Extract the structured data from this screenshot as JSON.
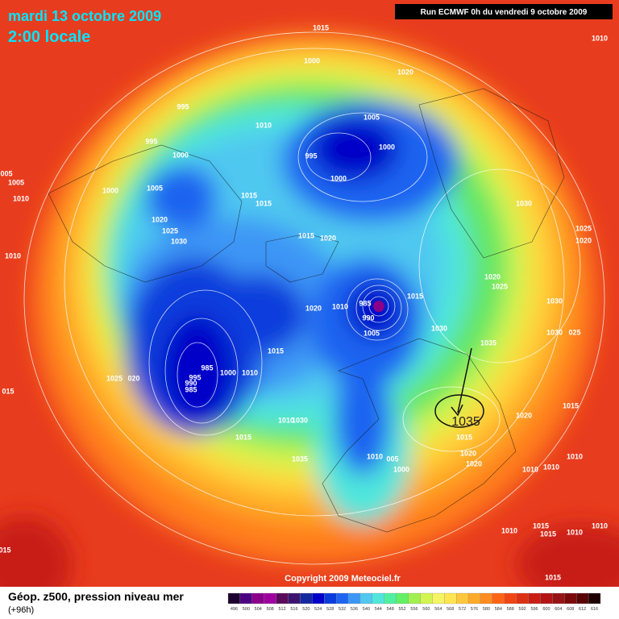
{
  "header": {
    "date": "mardi 13 octobre 2009",
    "time": "2:00 locale",
    "run": "Run ECMWF 0h du vendredi 9 octobre 2009"
  },
  "map": {
    "pressure_labels": [
      "1015",
      "1010",
      "1000",
      "1020",
      "995",
      "1010",
      "1005",
      "995",
      "1000",
      "1000",
      "995",
      "005",
      "1005",
      "1000",
      "1005",
      "1000",
      "1010",
      "1015",
      "1015",
      "1030",
      "1020",
      "1025",
      "1030",
      "1015",
      "1020",
      "1025",
      "1020",
      "1010",
      "1020",
      "1025",
      "1015",
      "1030",
      "1020",
      "1010",
      "985",
      "990",
      "1005",
      "1030",
      "1030",
      "025",
      "1035",
      "1015",
      "985",
      "995",
      "1000",
      "1010",
      "990",
      "1025",
      "020",
      "985",
      "015",
      "1020",
      "1015",
      "1010",
      "1030",
      "1015",
      "1015",
      "1035",
      "1020",
      "1020",
      "1010",
      "005",
      "1000",
      "1010",
      "1010",
      "1010",
      "1010",
      "1015",
      "1015",
      "1010",
      "1010",
      "015",
      "1015"
    ],
    "annotation": "1035"
  },
  "footer": {
    "copyright": "Copyright 2009 Meteociel.fr"
  },
  "legend": {
    "title": "Géop. z500, pression niveau mer",
    "lead": "(+96h)",
    "scale": [
      {
        "label": 496,
        "color": "#1e0030"
      },
      {
        "label": 500,
        "color": "#4b0082"
      },
      {
        "label": 504,
        "color": "#8b008b"
      },
      {
        "label": 508,
        "color": "#a000a0"
      },
      {
        "label": 512,
        "color": "#5a0a5a"
      },
      {
        "label": 516,
        "color": "#3c1470"
      },
      {
        "label": 520,
        "color": "#1428a0"
      },
      {
        "label": 524,
        "color": "#0000c8"
      },
      {
        "label": 528,
        "color": "#0a3cdc"
      },
      {
        "label": 532,
        "color": "#1e64f0"
      },
      {
        "label": 536,
        "color": "#3c96f5"
      },
      {
        "label": 540,
        "color": "#50c8f0"
      },
      {
        "label": 544,
        "color": "#50e6dc"
      },
      {
        "label": 548,
        "color": "#50f0a0"
      },
      {
        "label": 552,
        "color": "#64f064"
      },
      {
        "label": 556,
        "color": "#a0f050"
      },
      {
        "label": 560,
        "color": "#d2f550"
      },
      {
        "label": 564,
        "color": "#f5f564"
      },
      {
        "label": 568,
        "color": "#ffe650"
      },
      {
        "label": 572,
        "color": "#ffc83c"
      },
      {
        "label": 576,
        "color": "#ffaa28"
      },
      {
        "label": 580,
        "color": "#ff8c1e"
      },
      {
        "label": 584,
        "color": "#ff6414"
      },
      {
        "label": 588,
        "color": "#f04614"
      },
      {
        "label": 592,
        "color": "#dc3214"
      },
      {
        "label": 596,
        "color": "#c81e14"
      },
      {
        "label": 600,
        "color": "#b41414"
      },
      {
        "label": 604,
        "color": "#961414"
      },
      {
        "label": 608,
        "color": "#7a0a0a"
      },
      {
        "label": 612,
        "color": "#5a0505"
      },
      {
        "label": 616,
        "color": "#1e0000"
      }
    ]
  }
}
